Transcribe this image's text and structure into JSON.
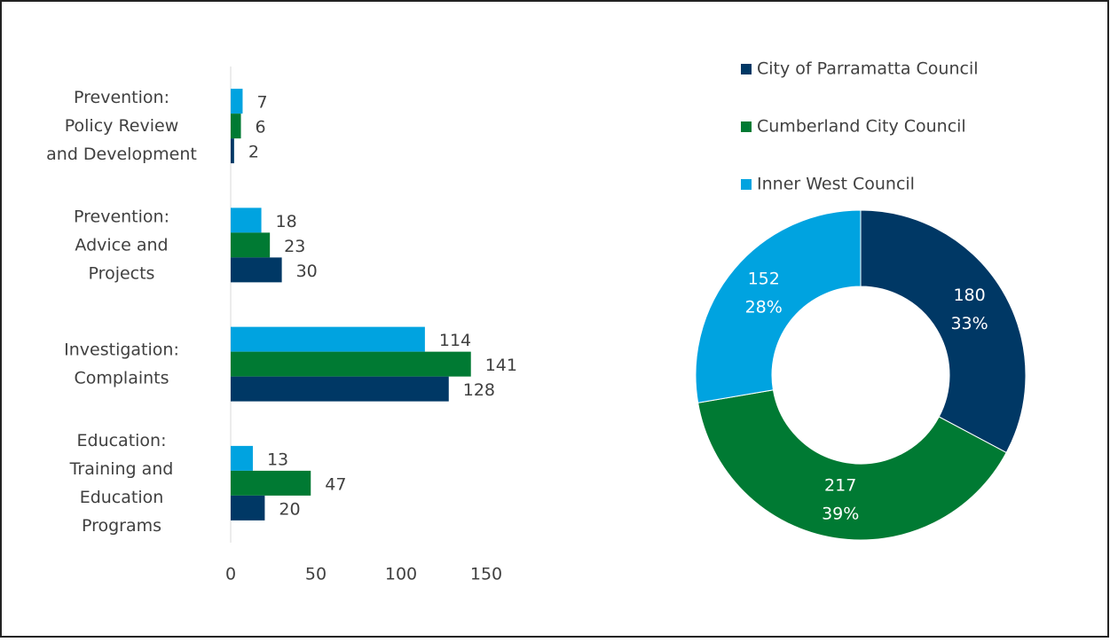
{
  "chart_data": [
    {
      "type": "hbar",
      "categories": [
        "Prevention: Policy Review and Development",
        "Prevention: Advice and Projects",
        "Investigation: Complaints",
        "Education: Training and Education Programs"
      ],
      "series": [
        {
          "color": "#00a3e0",
          "values": [
            7,
            18,
            114,
            13
          ]
        },
        {
          "color": "#007a33",
          "values": [
            6,
            23,
            141,
            47
          ]
        },
        {
          "color": "#003865",
          "values": [
            2,
            30,
            128,
            20
          ]
        }
      ],
      "xlim": [
        0,
        150
      ],
      "xticks": [
        0,
        50,
        100,
        150
      ]
    },
    {
      "type": "donut",
      "categories": [
        "City of Parramatta Council",
        "Cumberland City Council",
        "Inner West Council"
      ],
      "colors": [
        "#003865",
        "#007a33",
        "#00a3e0"
      ],
      "values": [
        180,
        217,
        152
      ],
      "value_labels": [
        "33%",
        "39%",
        "28%"
      ],
      "legend": "top"
    }
  ]
}
